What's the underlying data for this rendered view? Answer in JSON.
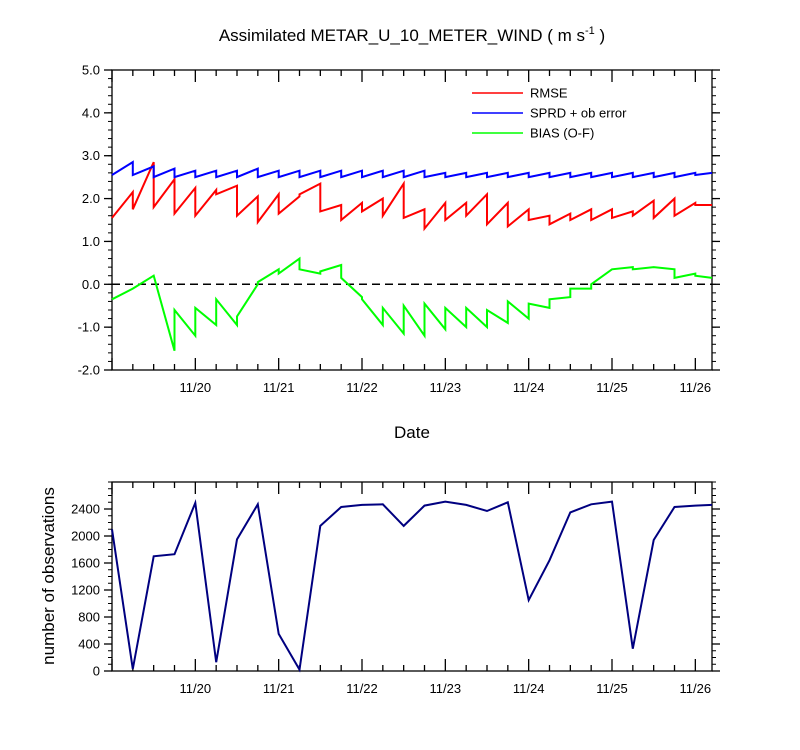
{
  "title": {
    "main": "Assimilated METAR_U_10_METER_WIND ( m s",
    "sup": "-1",
    "tail": " )"
  },
  "chart_data": [
    {
      "type": "line",
      "xlabel": "Date",
      "ylabel": "",
      "ylim": [
        -2.0,
        5.0
      ],
      "yticks": [
        "-2.0",
        "-1.0",
        "0.0",
        "1.0",
        "2.0",
        "3.0",
        "4.0",
        "5.0"
      ],
      "xlim": [
        19.0,
        26.2
      ],
      "xticks": [
        "11/20",
        "11/21",
        "11/22",
        "11/23",
        "11/24",
        "11/25",
        "11/26"
      ],
      "legend_position": "top-right",
      "zero_line": "dashed",
      "series": [
        {
          "name": "RMSE",
          "color": "#ff0000",
          "x": [
            19.0,
            19.25,
            19.25,
            19.5,
            19.5,
            19.75,
            19.75,
            20.0,
            20.0,
            20.25,
            20.25,
            20.5,
            20.5,
            20.75,
            20.75,
            21.0,
            21.0,
            21.25,
            21.25,
            21.5,
            21.5,
            21.75,
            21.75,
            22.0,
            22.0,
            22.25,
            22.25,
            22.5,
            22.5,
            22.75,
            22.75,
            23.0,
            23.0,
            23.25,
            23.25,
            23.5,
            23.5,
            23.75,
            23.75,
            24.0,
            24.0,
            24.25,
            24.25,
            24.5,
            24.5,
            24.75,
            24.75,
            25.0,
            25.0,
            25.25,
            25.25,
            25.5,
            25.5,
            25.75,
            25.75,
            26.0,
            26.0,
            26.2
          ],
          "y": [
            1.55,
            2.15,
            1.75,
            2.85,
            1.8,
            2.45,
            1.65,
            2.25,
            1.6,
            2.2,
            2.1,
            2.3,
            1.6,
            2.05,
            1.45,
            2.1,
            1.65,
            2.05,
            2.1,
            2.35,
            1.7,
            1.85,
            1.5,
            1.9,
            1.7,
            2.0,
            1.6,
            2.35,
            1.55,
            1.75,
            1.3,
            1.9,
            1.5,
            1.9,
            1.6,
            2.1,
            1.4,
            1.9,
            1.35,
            1.75,
            1.5,
            1.6,
            1.4,
            1.65,
            1.5,
            1.75,
            1.5,
            1.75,
            1.55,
            1.7,
            1.6,
            1.95,
            1.55,
            2.0,
            1.6,
            1.9,
            1.85,
            1.85
          ]
        },
        {
          "name": "SPRD + ob error",
          "color": "#0000ff",
          "x": [
            19.0,
            19.25,
            19.25,
            19.5,
            19.5,
            19.75,
            19.75,
            20.0,
            20.0,
            20.25,
            20.25,
            20.5,
            20.5,
            20.75,
            20.75,
            21.0,
            21.0,
            21.25,
            21.25,
            21.5,
            21.5,
            21.75,
            21.75,
            22.0,
            22.0,
            22.25,
            22.25,
            22.5,
            22.5,
            22.75,
            22.75,
            23.0,
            23.0,
            23.25,
            23.25,
            23.5,
            23.5,
            23.75,
            23.75,
            24.0,
            24.0,
            24.25,
            24.25,
            24.5,
            24.5,
            24.75,
            24.75,
            25.0,
            25.0,
            25.25,
            25.25,
            25.5,
            25.5,
            25.75,
            25.75,
            26.0,
            26.0,
            26.2
          ],
          "y": [
            2.55,
            2.85,
            2.55,
            2.75,
            2.5,
            2.7,
            2.5,
            2.65,
            2.5,
            2.65,
            2.5,
            2.65,
            2.5,
            2.7,
            2.5,
            2.65,
            2.5,
            2.65,
            2.5,
            2.65,
            2.5,
            2.65,
            2.5,
            2.65,
            2.5,
            2.65,
            2.5,
            2.65,
            2.5,
            2.65,
            2.5,
            2.6,
            2.5,
            2.6,
            2.5,
            2.6,
            2.5,
            2.6,
            2.5,
            2.6,
            2.5,
            2.6,
            2.5,
            2.6,
            2.5,
            2.6,
            2.5,
            2.6,
            2.5,
            2.6,
            2.5,
            2.6,
            2.5,
            2.6,
            2.5,
            2.6,
            2.55,
            2.6
          ]
        },
        {
          "name": "BIAS (O-F)",
          "color": "#00ff00",
          "x": [
            19.0,
            19.25,
            19.5,
            19.75,
            19.75,
            20.0,
            20.0,
            20.25,
            20.25,
            20.5,
            20.5,
            20.75,
            20.75,
            21.0,
            21.0,
            21.25,
            21.25,
            21.5,
            21.5,
            21.75,
            21.75,
            22.0,
            22.0,
            22.25,
            22.25,
            22.5,
            22.5,
            22.75,
            22.75,
            23.0,
            23.0,
            23.25,
            23.25,
            23.5,
            23.5,
            23.75,
            23.75,
            24.0,
            24.0,
            24.25,
            24.25,
            24.5,
            24.5,
            24.75,
            24.75,
            25.0,
            25.0,
            25.25,
            25.25,
            25.5,
            25.5,
            25.75,
            25.75,
            26.0,
            26.0,
            26.2
          ],
          "y": [
            -0.35,
            -0.1,
            0.2,
            -1.55,
            -0.6,
            -1.2,
            -0.55,
            -0.95,
            -0.35,
            -0.95,
            -0.75,
            0.0,
            0.05,
            0.35,
            0.25,
            0.6,
            0.35,
            0.25,
            0.3,
            0.45,
            0.15,
            -0.3,
            -0.35,
            -0.95,
            -0.55,
            -1.15,
            -0.5,
            -1.2,
            -0.45,
            -1.05,
            -0.55,
            -1.0,
            -0.55,
            -1.0,
            -0.6,
            -0.9,
            -0.4,
            -0.8,
            -0.45,
            -0.55,
            -0.35,
            -0.3,
            -0.1,
            -0.1,
            0.0,
            0.35,
            0.35,
            0.4,
            0.35,
            0.4,
            0.4,
            0.35,
            0.15,
            0.25,
            0.2,
            0.15
          ]
        }
      ]
    },
    {
      "type": "line",
      "xlabel": "",
      "ylabel": "number of observations",
      "ylim": [
        0,
        2800
      ],
      "yticks": [
        "0",
        "400",
        "800",
        "1200",
        "1600",
        "2000",
        "2400"
      ],
      "xlim": [
        19.0,
        26.2
      ],
      "xticks": [
        "11/20",
        "11/21",
        "11/22",
        "11/23",
        "11/24",
        "11/25",
        "11/26"
      ],
      "series": [
        {
          "color": "#000080",
          "x": [
            19.0,
            19.25,
            19.5,
            19.75,
            20.0,
            20.25,
            20.5,
            20.75,
            21.0,
            21.25,
            21.5,
            21.75,
            22.0,
            22.25,
            22.5,
            22.75,
            23.0,
            23.25,
            23.5,
            23.75,
            24.0,
            24.25,
            24.5,
            24.75,
            25.0,
            25.25,
            25.5,
            25.75,
            26.0,
            26.2
          ],
          "y": [
            2100,
            30,
            1700,
            1730,
            2490,
            130,
            1950,
            2470,
            550,
            20,
            2150,
            2430,
            2460,
            2470,
            2150,
            2450,
            2510,
            2460,
            2370,
            2500,
            1050,
            1640,
            2350,
            2470,
            2510,
            330,
            1940,
            2430,
            2450,
            2460
          ]
        }
      ]
    }
  ]
}
